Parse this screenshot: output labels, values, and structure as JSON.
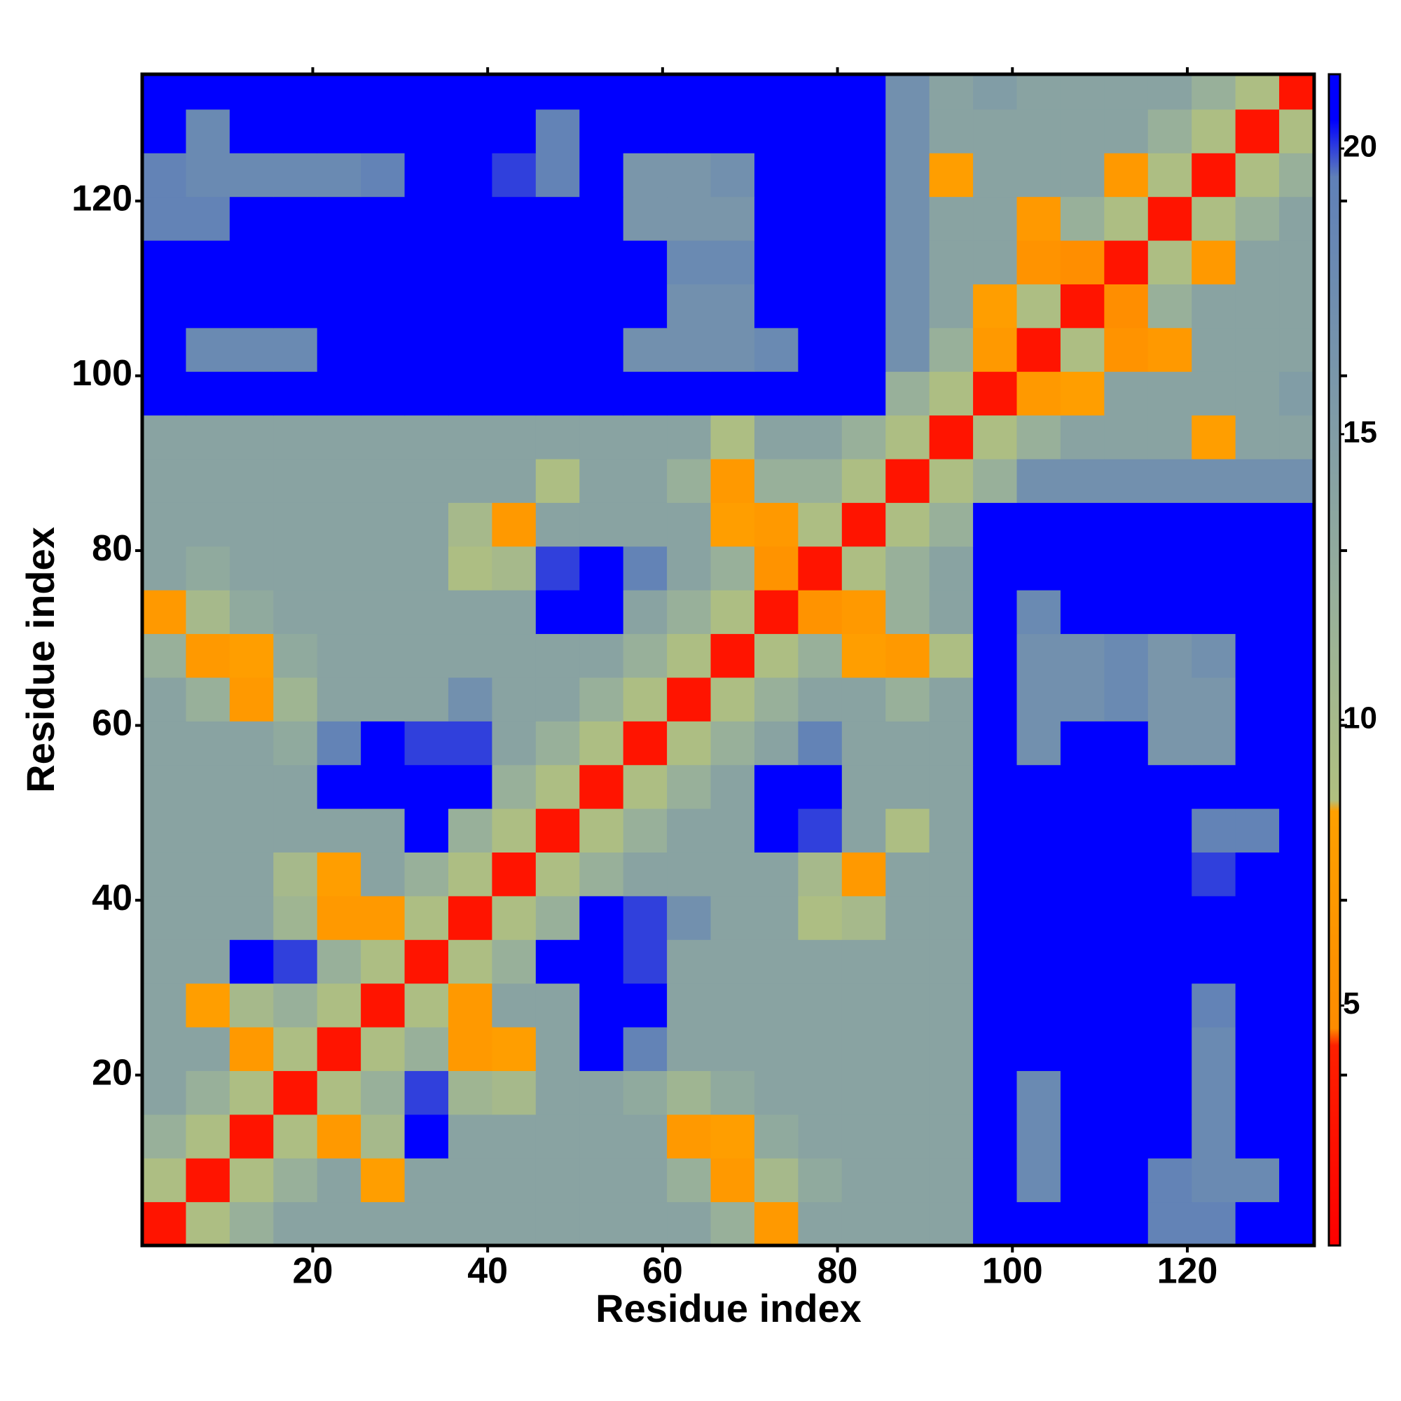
{
  "chart_data": {
    "type": "heatmap",
    "xlabel": "Residue index",
    "ylabel": "Residue index",
    "xlim": [
      0.5,
      134.5
    ],
    "ylim": [
      0.5,
      134.5
    ],
    "xticks": [
      20,
      40,
      60,
      80,
      100,
      120
    ],
    "yticks": [
      20,
      40,
      60,
      80,
      100,
      120
    ],
    "bins": [
      0.5,
      5.5,
      10.5,
      15.5,
      20.5,
      25.5,
      30.5,
      35.5,
      40.5,
      45.5,
      50.5,
      55.5,
      60.5,
      65.5,
      70.5,
      75.5,
      80.5,
      85.5,
      90.5,
      95.5,
      100.5,
      105.5,
      110.5,
      115.5,
      120.5,
      125.5,
      130.5,
      134.5
    ],
    "clim": [
      0.8,
      21.3
    ],
    "cticks": [
      5,
      10,
      15,
      20
    ],
    "colorscale": [
      [
        0.8,
        "#ff0000"
      ],
      [
        4.3,
        "#ff2000"
      ],
      [
        4.6,
        "#ff8c00"
      ],
      [
        8.4,
        "#ffa000"
      ],
      [
        8.6,
        "#b0c080"
      ],
      [
        12,
        "#98b09a"
      ],
      [
        19.5,
        "#5f80b8"
      ],
      [
        20.5,
        "#0000ff"
      ],
      [
        21.3,
        "#0000ff"
      ]
    ],
    "values": [
      [
        3,
        9,
        12,
        14,
        14,
        14,
        14,
        14,
        14,
        14,
        14,
        14,
        14,
        12,
        7,
        14,
        14,
        14,
        14,
        21,
        21,
        21,
        21,
        19,
        19,
        21,
        21
      ],
      [
        9,
        3,
        9,
        12,
        14,
        8,
        14,
        14,
        14,
        14,
        14,
        14,
        12,
        7,
        10,
        13,
        14,
        14,
        14,
        21,
        18,
        21,
        21,
        19,
        18,
        18,
        21
      ],
      [
        12,
        9,
        3,
        9,
        7,
        10,
        21,
        14,
        14,
        14,
        14,
        14,
        7,
        8,
        13,
        14,
        14,
        14,
        14,
        21,
        18,
        21,
        21,
        21,
        18,
        21,
        21
      ],
      [
        14,
        12,
        9,
        3,
        9,
        12,
        20,
        11,
        10,
        14,
        14,
        13,
        11,
        13,
        14,
        14,
        14,
        14,
        14,
        21,
        18,
        21,
        21,
        21,
        18,
        21,
        21
      ],
      [
        14,
        14,
        7,
        9,
        3,
        9,
        12,
        7,
        8,
        14,
        21,
        19,
        14,
        14,
        14,
        14,
        14,
        14,
        14,
        21,
        21,
        21,
        21,
        21,
        18,
        21,
        21
      ],
      [
        14,
        8,
        10,
        12,
        9,
        3,
        9,
        7,
        14,
        14,
        21,
        21,
        14,
        14,
        14,
        14,
        14,
        14,
        14,
        21,
        21,
        21,
        21,
        21,
        19,
        21,
        21
      ],
      [
        14,
        14,
        21,
        20,
        12,
        9,
        3,
        9,
        12,
        21,
        21,
        20,
        14,
        14,
        14,
        14,
        14,
        14,
        14,
        21,
        21,
        21,
        21,
        21,
        21,
        21,
        21
      ],
      [
        14,
        14,
        14,
        11,
        7,
        7,
        9,
        3,
        9,
        12,
        21,
        20,
        17,
        14,
        14,
        9,
        10,
        14,
        14,
        21,
        21,
        21,
        21,
        21,
        21,
        21,
        21
      ],
      [
        14,
        14,
        14,
        10,
        8,
        14,
        12,
        9,
        3,
        9,
        12,
        14,
        14,
        14,
        14,
        10,
        7,
        14,
        14,
        21,
        21,
        21,
        21,
        21,
        20,
        21,
        21
      ],
      [
        14,
        14,
        14,
        14,
        14,
        14,
        21,
        12,
        9,
        3,
        9,
        12,
        14,
        14,
        21,
        20,
        14,
        9,
        14,
        21,
        21,
        21,
        21,
        21,
        19,
        19,
        21
      ],
      [
        14,
        14,
        14,
        14,
        21,
        21,
        21,
        21,
        12,
        9,
        3,
        9,
        12,
        14,
        21,
        21,
        14,
        14,
        14,
        21,
        21,
        21,
        21,
        21,
        21,
        21,
        21
      ],
      [
        14,
        14,
        14,
        13,
        19,
        21,
        20,
        20,
        14,
        12,
        9,
        3,
        9,
        12,
        14,
        19,
        14,
        14,
        14,
        21,
        17,
        21,
        21,
        16,
        16,
        21,
        21
      ],
      [
        14,
        12,
        7,
        11,
        14,
        14,
        14,
        17,
        14,
        14,
        12,
        9,
        3,
        9,
        12,
        14,
        14,
        12,
        14,
        21,
        17,
        17,
        18,
        16,
        16,
        21,
        21
      ],
      [
        12,
        7,
        8,
        13,
        14,
        14,
        14,
        14,
        14,
        14,
        14,
        12,
        9,
        3,
        9,
        12,
        8,
        7,
        9,
        21,
        17,
        17,
        18,
        16,
        17,
        21,
        21
      ],
      [
        7,
        10,
        13,
        14,
        14,
        14,
        14,
        14,
        14,
        21,
        21,
        14,
        12,
        9,
        3,
        6,
        7,
        12,
        14,
        21,
        18,
        21,
        21,
        21,
        21,
        21,
        21
      ],
      [
        14,
        13,
        14,
        14,
        14,
        14,
        14,
        9,
        10,
        20,
        21,
        19,
        14,
        12,
        6,
        3,
        9,
        12,
        14,
        21,
        21,
        21,
        21,
        21,
        21,
        21,
        21
      ],
      [
        14,
        14,
        14,
        14,
        14,
        14,
        14,
        10,
        7,
        14,
        14,
        14,
        14,
        8,
        7,
        9,
        3,
        9,
        12,
        21,
        21,
        21,
        21,
        21,
        21,
        21,
        21
      ],
      [
        14,
        14,
        14,
        14,
        14,
        14,
        14,
        14,
        14,
        9,
        14,
        14,
        12,
        7,
        12,
        12,
        9,
        3,
        9,
        12,
        17,
        17,
        17,
        17,
        17,
        17,
        17
      ],
      [
        14,
        14,
        14,
        14,
        14,
        14,
        14,
        14,
        14,
        14,
        14,
        14,
        14,
        9,
        14,
        14,
        12,
        9,
        3,
        9,
        12,
        14,
        14,
        14,
        8,
        14,
        14
      ],
      [
        21,
        21,
        21,
        21,
        21,
        21,
        21,
        21,
        21,
        21,
        21,
        21,
        21,
        21,
        21,
        21,
        21,
        12,
        9,
        3,
        7,
        8,
        14,
        14,
        14,
        14,
        15
      ],
      [
        21,
        18,
        18,
        18,
        21,
        21,
        21,
        21,
        21,
        21,
        21,
        17,
        17,
        17,
        18,
        21,
        21,
        17,
        12,
        7,
        3,
        9,
        6,
        7,
        14,
        14,
        14
      ],
      [
        21,
        21,
        21,
        21,
        21,
        21,
        21,
        21,
        21,
        21,
        21,
        21,
        17,
        17,
        21,
        21,
        21,
        17,
        14,
        8,
        9,
        3,
        5,
        12,
        14,
        14,
        14
      ],
      [
        21,
        21,
        21,
        21,
        21,
        21,
        21,
        21,
        21,
        21,
        21,
        21,
        18,
        18,
        21,
        21,
        21,
        17,
        14,
        14,
        6,
        5,
        3,
        9,
        7,
        14,
        14
      ],
      [
        19,
        19,
        21,
        21,
        21,
        21,
        21,
        21,
        21,
        21,
        21,
        16,
        16,
        16,
        21,
        21,
        21,
        17,
        14,
        14,
        7,
        12,
        9,
        3,
        9,
        12,
        14
      ],
      [
        19,
        18,
        18,
        18,
        18,
        19,
        21,
        21,
        20,
        19,
        21,
        16,
        16,
        17,
        21,
        21,
        21,
        17,
        8,
        14,
        14,
        14,
        7,
        9,
        3,
        9,
        12
      ],
      [
        21,
        18,
        21,
        21,
        21,
        21,
        21,
        21,
        21,
        19,
        21,
        21,
        21,
        21,
        21,
        21,
        21,
        17,
        14,
        14,
        14,
        14,
        14,
        12,
        9,
        3,
        9
      ],
      [
        21,
        21,
        21,
        21,
        21,
        21,
        21,
        21,
        21,
        21,
        21,
        21,
        21,
        21,
        21,
        21,
        21,
        17,
        14,
        15,
        14,
        14,
        14,
        14,
        12,
        9,
        3
      ]
    ]
  }
}
